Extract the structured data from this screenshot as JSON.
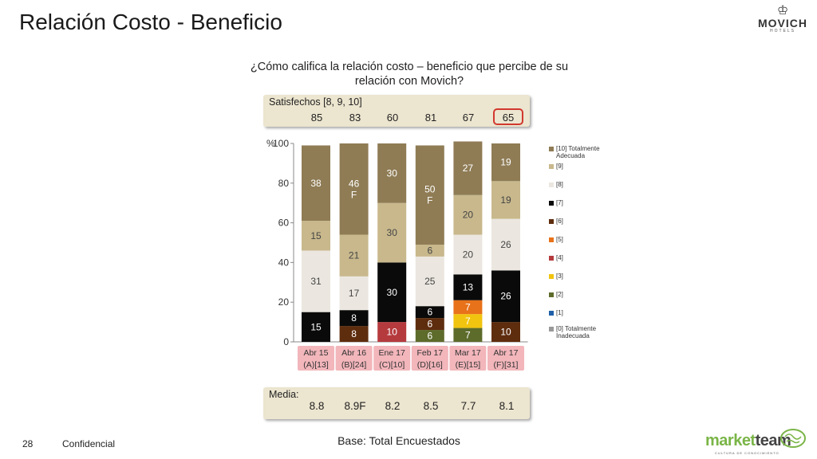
{
  "page": {
    "title": "Relación Costo - Beneficio",
    "brand": {
      "name": "MOVICH",
      "sub": "HOTELS"
    },
    "question": "¿Cómo califica la relación costo – beneficio que percibe de su relación con Movich?",
    "satisfied_label": "Satisfechos [8, 9, 10]",
    "satisfied_values": [
      "85",
      "83",
      "60",
      "81",
      "67",
      "65"
    ],
    "media_label": "Media:",
    "media_values": [
      "8.8",
      "8.9F",
      "8.2",
      "8.5",
      "7.7",
      "8.1"
    ],
    "base": "Base: Total Encuestados",
    "page_number": "28",
    "footer": "Confidencial",
    "partner_logo": {
      "part1": "market",
      "part2": "team",
      "tagline": "CULTURA DE CONOCIMIENTO"
    }
  },
  "colors": {
    "s10": "#8f7c55",
    "s9": "#c8b88c",
    "s8": "#ebe7e0",
    "s7": "#0a0a0a",
    "s6": "#5e2d0e",
    "s5": "#e8721a",
    "s4": "#b53a3e",
    "s3": "#f1c40f",
    "s2": "#5d6b2b",
    "s1": "#1f5fa8",
    "s0": "#999999",
    "highlight": "#d2382f",
    "xlabel_bg": "#f2b6bb",
    "panel_bg": "#ece5cf"
  },
  "chart_data": {
    "type": "bar",
    "stacked": true,
    "ylabel": "%",
    "ylim": [
      0,
      100
    ],
    "yticks": [
      "0",
      "20",
      "40",
      "60",
      "80",
      "100"
    ],
    "grid": false,
    "legend": "right",
    "categories": [
      {
        "line1": "Abr 15",
        "line2": "(A)[13]"
      },
      {
        "line1": "Abr 16",
        "line2": "(B)[24]"
      },
      {
        "line1": "Ene 17",
        "line2": "(C)[10]"
      },
      {
        "line1": "Feb 17",
        "line2": "(D)[16]"
      },
      {
        "line1": "Mar 17",
        "line2": "(E)[15]"
      },
      {
        "line1": "Abr 17",
        "line2": "(F)[31]"
      }
    ],
    "series": [
      {
        "name": "[0] Totalmente Inadecuada",
        "key": "s0",
        "values": [
          0,
          0,
          0,
          0,
          0,
          0
        ],
        "labels": [
          "",
          "",
          "",
          "",
          "",
          ""
        ]
      },
      {
        "name": "[1]",
        "key": "s1",
        "values": [
          0,
          0,
          0,
          0,
          0,
          0
        ],
        "labels": [
          "",
          "",
          "",
          "",
          "",
          ""
        ]
      },
      {
        "name": "[2]",
        "key": "s2",
        "values": [
          0,
          0,
          0,
          6,
          7,
          0
        ],
        "labels": [
          "",
          "",
          "",
          "6",
          "7",
          ""
        ]
      },
      {
        "name": "[3]",
        "key": "s3",
        "values": [
          0,
          0,
          0,
          0,
          7,
          0
        ],
        "labels": [
          "",
          "",
          "",
          "",
          "7",
          ""
        ]
      },
      {
        "name": "[4]",
        "key": "s4",
        "values": [
          0,
          0,
          10,
          0,
          0,
          0
        ],
        "labels": [
          "",
          "",
          "10",
          "",
          "",
          ""
        ]
      },
      {
        "name": "[5]",
        "key": "s5",
        "values": [
          0,
          0,
          0,
          0,
          7,
          0
        ],
        "labels": [
          "",
          "",
          "",
          "",
          "7",
          ""
        ]
      },
      {
        "name": "[6]",
        "key": "s6",
        "values": [
          0,
          8,
          0,
          6,
          0,
          10
        ],
        "labels": [
          "",
          "8",
          "",
          "6",
          "",
          "10"
        ]
      },
      {
        "name": "[7]",
        "key": "s7",
        "values": [
          15,
          8,
          30,
          6,
          13,
          26
        ],
        "labels": [
          "15",
          "8",
          "30",
          "6",
          "13",
          "26"
        ]
      },
      {
        "name": "[8]",
        "key": "s8",
        "values": [
          31,
          17,
          0,
          25,
          20,
          26
        ],
        "labels": [
          "31",
          "17",
          "",
          "25",
          "20",
          "26"
        ]
      },
      {
        "name": "[9]",
        "key": "s9",
        "values": [
          15,
          21,
          30,
          6,
          20,
          19
        ],
        "labels": [
          "15",
          "21",
          "30",
          "6",
          "20",
          "19"
        ]
      },
      {
        "name": "[10] Totalmente Adecuada",
        "key": "s10",
        "values": [
          38,
          46,
          30,
          50,
          27,
          19
        ],
        "labels": [
          "38",
          "46\nF",
          "30",
          "50\nF",
          "27",
          "19"
        ]
      }
    ]
  }
}
